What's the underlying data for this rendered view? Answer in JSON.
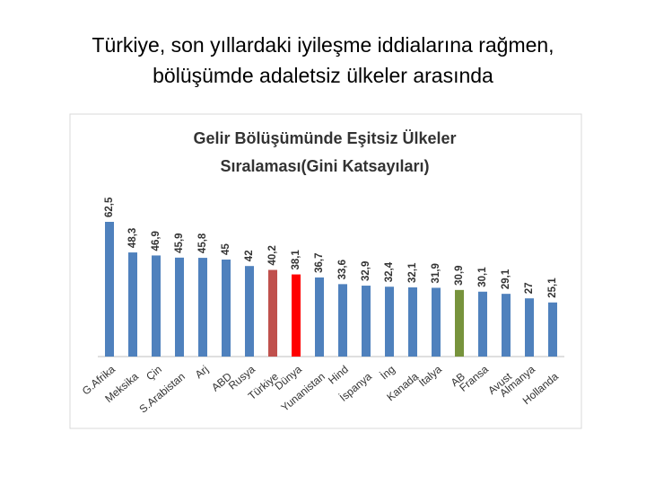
{
  "slide_title": [
    "Türkiye, son yıllardaki iyileşme iddialarına rağmen,",
    "bölüşümde adaletsiz ülkeler arasında"
  ],
  "chart_data": {
    "type": "bar",
    "title": [
      "Gelir Bölüşümünde Eşitsiz Ülkeler",
      "Sıralaması(Gini Katsayıları)"
    ],
    "categories": [
      "G.Afrika",
      "Meksika",
      "Çin",
      "S.Arabistan",
      "Arj",
      "ABD",
      "Rusya",
      "Türkiye",
      "Dünya",
      "Yunanistan",
      "Hind",
      "İspanya",
      "İng",
      "Kanada",
      "İtalya",
      "AB",
      "Fransa",
      "Avust",
      "Almanya",
      "Hollanda"
    ],
    "values": [
      62.5,
      48.3,
      46.9,
      45.9,
      45.8,
      45,
      42,
      40.2,
      38.1,
      36.7,
      33.6,
      32.9,
      32.4,
      32.1,
      31.9,
      30.9,
      30.1,
      29.1,
      27,
      25.1
    ],
    "value_labels": [
      "62,5",
      "48,3",
      "46,9",
      "45,9",
      "45,8",
      "45",
      "42",
      "40,2",
      "38,1",
      "36,7",
      "33,6",
      "32,9",
      "32,4",
      "32,1",
      "31,9",
      "30,9",
      "30,1",
      "29,1",
      "27",
      "25,1"
    ],
    "colors": [
      "#4f81bd",
      "#4f81bd",
      "#4f81bd",
      "#4f81bd",
      "#4f81bd",
      "#4f81bd",
      "#4f81bd",
      "#c0504d",
      "#ff0000",
      "#4f81bd",
      "#4f81bd",
      "#4f81bd",
      "#4f81bd",
      "#4f81bd",
      "#4f81bd",
      "#77933c",
      "#4f81bd",
      "#4f81bd",
      "#4f81bd",
      "#4f81bd"
    ],
    "ylim": [
      0,
      70
    ]
  }
}
